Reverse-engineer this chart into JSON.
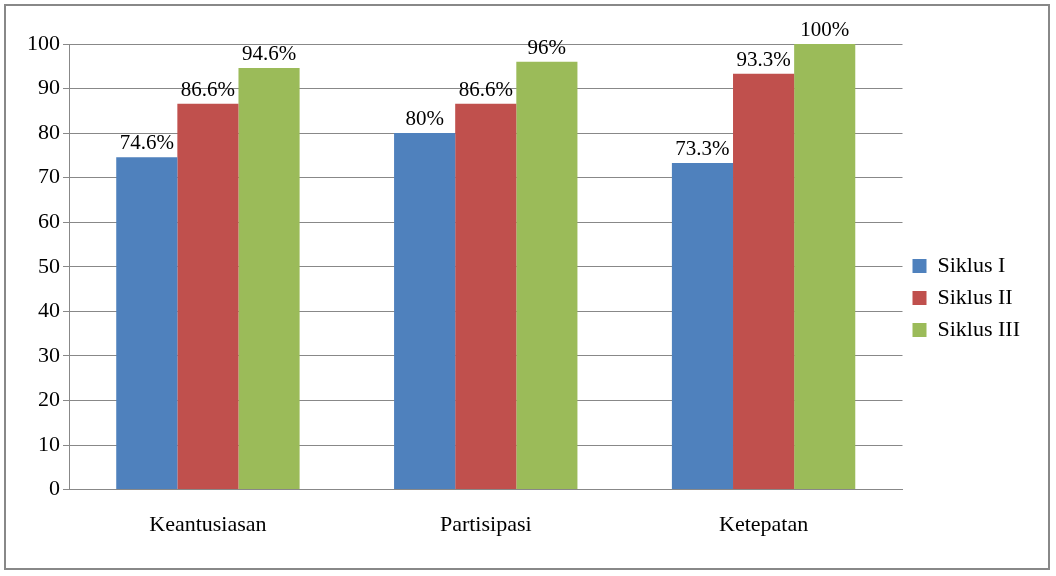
{
  "chart_data": {
    "type": "bar",
    "categories": [
      "Keantusiasan",
      "Partisipasi",
      "Ketepatan"
    ],
    "series": [
      {
        "name": "Siklus I",
        "color": "#4f81bd",
        "values": [
          74.6,
          80,
          73.3
        ],
        "value_labels": [
          "74.6%",
          "80%",
          "73.3%"
        ]
      },
      {
        "name": "Siklus II",
        "color": "#c0504d",
        "values": [
          86.6,
          86.6,
          93.3
        ],
        "value_labels": [
          "86.6%",
          "86.6%",
          "93.3%"
        ]
      },
      {
        "name": "Siklus III",
        "color": "#9bbb59",
        "values": [
          94.6,
          96,
          100
        ],
        "value_labels": [
          "94.6%",
          "96%",
          "100%"
        ]
      }
    ],
    "ylim": [
      0,
      100
    ],
    "yticks": [
      0,
      10,
      20,
      30,
      40,
      50,
      60,
      70,
      80,
      90,
      100
    ],
    "grid": "y",
    "legend": "right"
  }
}
